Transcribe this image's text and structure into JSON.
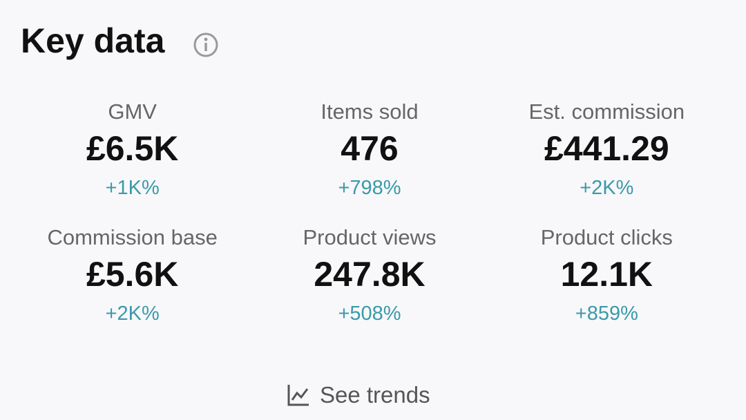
{
  "header": {
    "title": "Key data"
  },
  "metrics": [
    {
      "label": "GMV",
      "value": "£6.5K",
      "change": "+1K%"
    },
    {
      "label": "Items sold",
      "value": "476",
      "change": "+798%"
    },
    {
      "label": "Est. commission",
      "value": "£441.29",
      "change": "+2K%"
    },
    {
      "label": "Commission base",
      "value": "£5.6K",
      "change": "+2K%"
    },
    {
      "label": "Product views",
      "value": "247.8K",
      "change": "+508%"
    },
    {
      "label": "Product clicks",
      "value": "12.1K",
      "change": "+859%"
    }
  ],
  "link": {
    "label": "See trends"
  }
}
